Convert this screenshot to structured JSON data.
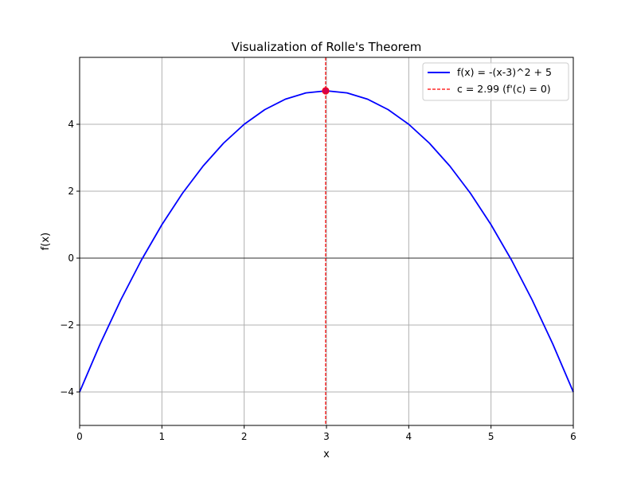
{
  "chart_data": {
    "type": "line",
    "title": "Visualization of Rolle's Theorem",
    "xlabel": "x",
    "ylabel": "f(x)",
    "xlim": [
      0,
      6
    ],
    "ylim": [
      -5,
      6
    ],
    "x_ticks": [
      0,
      1,
      2,
      3,
      4,
      5,
      6
    ],
    "x_tick_labels": [
      "0",
      "1",
      "2",
      "3",
      "4",
      "5",
      "6"
    ],
    "y_ticks": [
      -4,
      -2,
      0,
      2,
      4
    ],
    "y_tick_labels": [
      "−4",
      "−2",
      "0",
      "2",
      "4"
    ],
    "grid": true,
    "legend_position": "top-right",
    "series": [
      {
        "name": "f(x) = -(x-3)^2 + 5",
        "color": "#0000ff",
        "style": "solid",
        "x": [
          0,
          0.25,
          0.5,
          0.75,
          1,
          1.25,
          1.5,
          1.75,
          2,
          2.25,
          2.5,
          2.75,
          3,
          3.25,
          3.5,
          3.75,
          4,
          4.25,
          4.5,
          4.75,
          5,
          5.25,
          5.5,
          5.75,
          6
        ],
        "y": [
          -4,
          -2.5625,
          -1.25,
          -0.0625,
          1,
          1.9375,
          2.75,
          3.4375,
          4,
          4.4375,
          4.75,
          4.9375,
          5,
          4.9375,
          4.75,
          4.4375,
          4,
          3.4375,
          2.75,
          1.9375,
          1,
          -0.0625,
          -1.25,
          -2.5625,
          -4
        ]
      },
      {
        "name": "c = 2.99 (f'(c) = 0)",
        "color": "#ff0000",
        "style": "dashed",
        "vertical_line_x": 2.99
      }
    ],
    "reference_lines": [
      {
        "orientation": "horizontal",
        "y": 0,
        "color": "#000000"
      }
    ],
    "points": [
      {
        "x": 2.99,
        "y": 5,
        "color": "#ff0000"
      }
    ]
  }
}
